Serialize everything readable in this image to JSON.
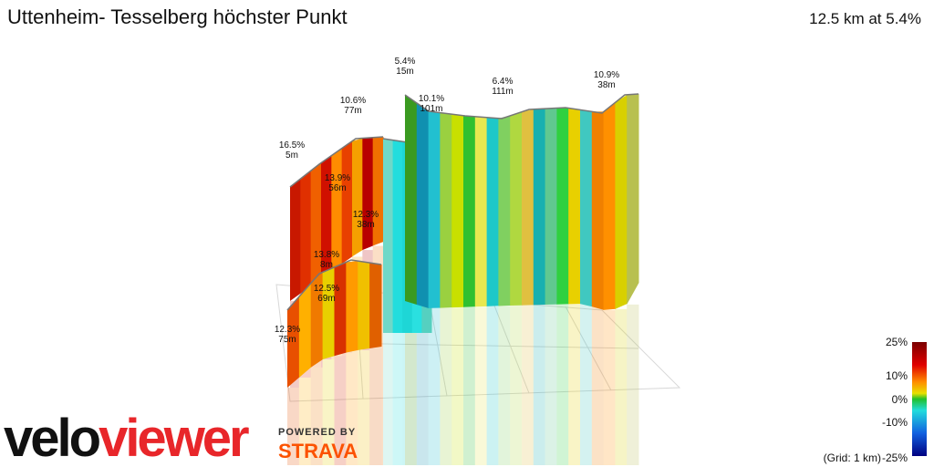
{
  "header": {
    "title": "Uttenheim- Tesselberg höchster Punkt",
    "summary": "12.5 km at 5.4%"
  },
  "annotations": [
    {
      "grade": "16.5%",
      "length": "5m"
    },
    {
      "grade": "10.6%",
      "length": "77m"
    },
    {
      "grade": "5.4%",
      "length": "15m"
    },
    {
      "grade": "10.1%",
      "length": "101m"
    },
    {
      "grade": "6.4%",
      "length": "111m"
    },
    {
      "grade": "10.9%",
      "length": "38m"
    },
    {
      "grade": "13.9%",
      "length": "56m"
    },
    {
      "grade": "12.3%",
      "length": "38m"
    },
    {
      "grade": "13.8%",
      "length": "8m"
    },
    {
      "grade": "12.5%",
      "length": "69m"
    },
    {
      "grade": "12.3%",
      "length": "75m"
    }
  ],
  "legend": {
    "labels": [
      "25%",
      "10%",
      "0%",
      "-10%",
      "-25%"
    ],
    "grid_note": "(Grid: 1 km)"
  },
  "branding": {
    "logo_prefix": "velo",
    "logo_suffix": "viewer",
    "powered_by": "POWERED BY",
    "partner": "STRAVA"
  }
}
